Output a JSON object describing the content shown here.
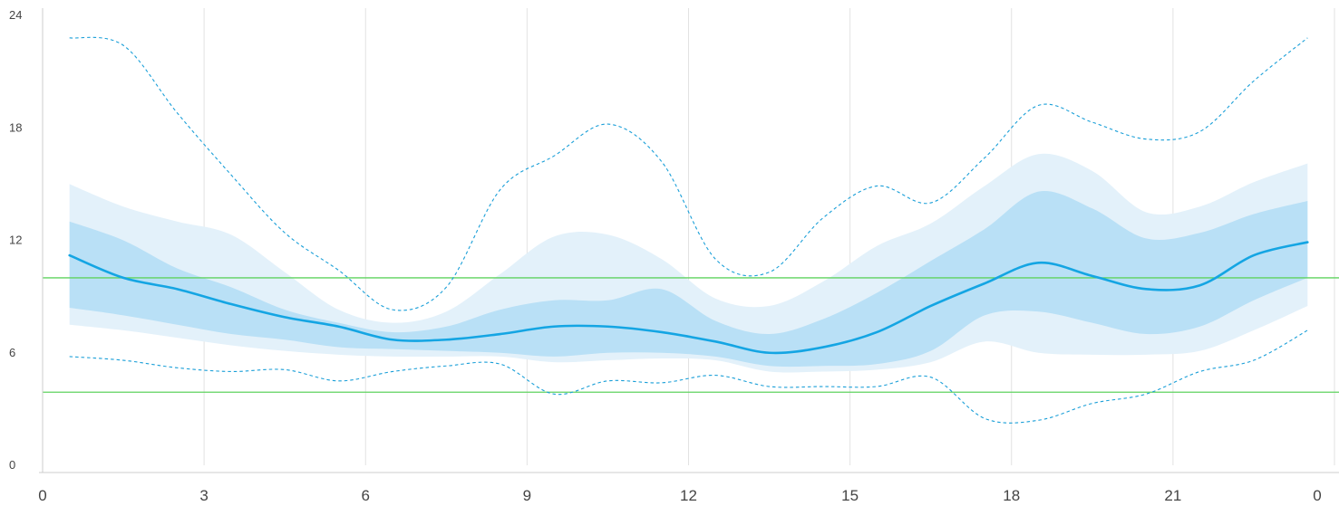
{
  "chart_data": {
    "type": "area",
    "title": "",
    "xlabel": "",
    "ylabel": "",
    "x_tick_labels": [
      "0",
      "3",
      "6",
      "9",
      "12",
      "15",
      "18",
      "21",
      "0"
    ],
    "y_ticks": [
      0,
      6,
      12,
      18,
      24
    ],
    "xlim": [
      0,
      24
    ],
    "ylim": [
      0,
      24
    ],
    "grid": {
      "vertical": true,
      "horizontal": false
    },
    "target_range": {
      "low": 3.9,
      "high": 10.0,
      "color": "#5fd35f"
    },
    "x": [
      0.5,
      1.5,
      2.5,
      3.5,
      4.5,
      5.5,
      6.5,
      7.5,
      8.5,
      9.5,
      10.5,
      11.5,
      12.5,
      13.5,
      14.5,
      15.5,
      16.5,
      17.5,
      18.5,
      19.5,
      20.5,
      21.5,
      22.5,
      23.5
    ],
    "series": [
      {
        "role": "p95",
        "values": [
          22.8,
          22.4,
          18.8,
          15.5,
          12.4,
          10.4,
          8.3,
          9.5,
          14.7,
          16.5,
          18.2,
          16.2,
          11.0,
          10.3,
          13.2,
          14.9,
          14.0,
          16.4,
          19.2,
          18.3,
          17.4,
          17.8,
          20.5,
          22.8
        ],
        "style": "dashed",
        "color": "#1a9fd8"
      },
      {
        "role": "p90",
        "values": [
          15.0,
          13.8,
          13.0,
          12.3,
          10.3,
          8.3,
          7.6,
          8.2,
          10.2,
          12.2,
          12.3,
          11.0,
          8.9,
          8.5,
          9.8,
          11.7,
          12.9,
          14.9,
          16.6,
          15.7,
          13.5,
          13.8,
          15.1,
          16.1
        ],
        "color": "#e3f1fa"
      },
      {
        "role": "p75",
        "values": [
          13.0,
          12.0,
          10.5,
          9.5,
          8.3,
          7.6,
          7.1,
          7.4,
          8.3,
          8.8,
          8.8,
          9.4,
          7.7,
          7.0,
          7.8,
          9.2,
          10.9,
          12.6,
          14.6,
          13.7,
          12.1,
          12.4,
          13.4,
          14.1
        ],
        "color": "#b9e0f6"
      },
      {
        "role": "median",
        "values": [
          11.2,
          10.0,
          9.4,
          8.6,
          7.9,
          7.4,
          6.7,
          6.7,
          7.0,
          7.4,
          7.4,
          7.1,
          6.6,
          6.0,
          6.3,
          7.1,
          8.5,
          9.7,
          10.8,
          10.1,
          9.4,
          9.6,
          11.2,
          11.9
        ],
        "color": "#14a5e3"
      },
      {
        "role": "p25",
        "values": [
          8.4,
          8.0,
          7.5,
          7.0,
          6.7,
          6.3,
          6.2,
          6.1,
          6.0,
          5.8,
          6.0,
          6.0,
          5.8,
          5.3,
          5.3,
          5.4,
          6.1,
          8.0,
          8.2,
          7.6,
          7.0,
          7.4,
          8.8,
          10.0
        ],
        "color": "#b9e0f6"
      },
      {
        "role": "p10",
        "values": [
          7.5,
          7.2,
          6.8,
          6.4,
          6.1,
          5.9,
          5.8,
          5.8,
          5.8,
          5.5,
          5.6,
          5.7,
          5.6,
          5.0,
          5.0,
          5.1,
          5.5,
          6.6,
          6.0,
          5.9,
          5.9,
          6.1,
          7.2,
          8.5
        ],
        "color": "#e3f1fa"
      },
      {
        "role": "p5",
        "values": [
          5.8,
          5.6,
          5.2,
          5.0,
          5.1,
          4.5,
          5.0,
          5.3,
          5.4,
          3.8,
          4.5,
          4.4,
          4.8,
          4.2,
          4.2,
          4.2,
          4.7,
          2.5,
          2.4,
          3.3,
          3.8,
          5.0,
          5.6,
          7.2
        ],
        "style": "dashed",
        "color": "#1a9fd8"
      }
    ]
  }
}
